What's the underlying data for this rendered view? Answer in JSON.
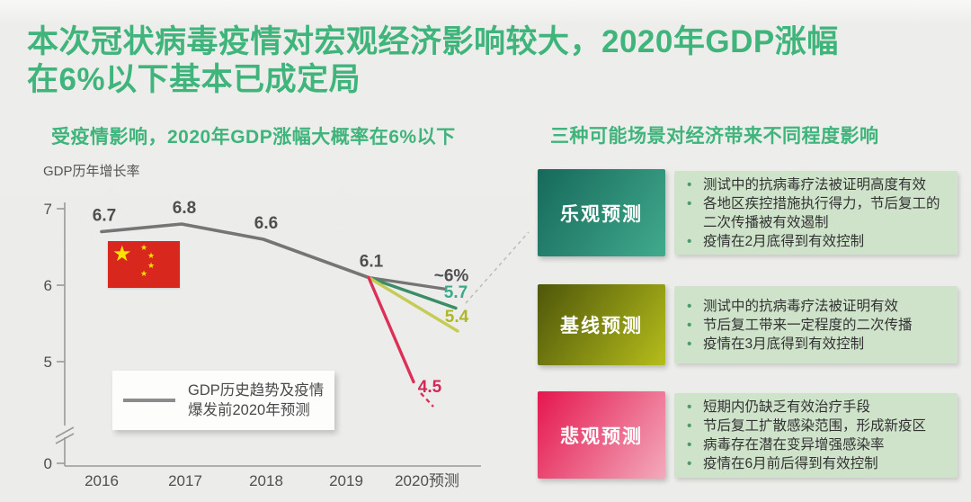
{
  "slide": {
    "title_line1": "本次冠状病毒疫情对宏观经济影响较大，2020年GDP涨幅",
    "title_line2": "在6%以下基本已成定局",
    "left_subtitle": "受疫情影响，2020年GDP涨幅大概率在6%以下",
    "right_subtitle": "三种可能场景对经济带来不同程度影响"
  },
  "colors": {
    "title_green": "#3fb47b",
    "optimistic_box_dark": "#16695a",
    "optimistic_box_light": "#41aa8d",
    "baseline_box_dark": "#4e560a",
    "baseline_box_light": "#b5bd1b",
    "pessimistic_box_dark": "#e5164e",
    "pessimistic_box_light": "#f3aabc",
    "bullet_panel_bg": "#cee3ca",
    "flag_red": "#d8271d",
    "flag_star_yellow": "#fde100",
    "axis_gray": "#9a9a9a",
    "connector_dash_gray": "#bcbcbc"
  },
  "chart_data": {
    "type": "line",
    "title": "GDP历年增长率",
    "x_labels": [
      "2016",
      "2017",
      "2018",
      "2019",
      "2020预测"
    ],
    "y_ticks_upper": [
      7,
      6,
      5
    ],
    "y_tick_bottom": 0,
    "axis_break": true,
    "grid": false,
    "history": {
      "name": "GDP历史趋势及疫情爆发前2020年预测",
      "line_color": "#757575",
      "label_color": "#4f4f4f",
      "years": [
        "2016",
        "2017",
        "2018",
        "2019"
      ],
      "values": [
        6.7,
        6.8,
        6.6,
        6.1
      ],
      "point_labels": [
        "6.7",
        "6.8",
        "6.6",
        "6.1"
      ]
    },
    "forecast_2020": [
      {
        "name": "疫情爆发前2020年预测",
        "value": 5.95,
        "label": "~6%",
        "line_color": "#757575",
        "label_color": "#4f4f4f"
      },
      {
        "name": "乐观预测",
        "value": 5.7,
        "label": "5.7",
        "line_color": "#398e66",
        "label_color": "#3aaa8c"
      },
      {
        "name": "基线预测",
        "value": 5.4,
        "label": "5.4",
        "line_color": "#c5cc55",
        "label_color": "#adb827"
      },
      {
        "name": "悲观预测",
        "value": 4.5,
        "label": "4.5",
        "line_color": "#dc3058",
        "label_color": "#d22858"
      }
    ],
    "legend": {
      "line1": "GDP历史趋势及疫情",
      "line2": "爆发前2020年预测",
      "position": "lower-left"
    }
  },
  "scenarios": [
    {
      "label": "乐观预测",
      "bullets": [
        "测试中的抗病毒疗法被证明高度有效",
        "各地区疾控措施执行得力，节后复工的二次传播被有效遏制",
        "疫情在2月底得到有效控制"
      ]
    },
    {
      "label": "基线预测",
      "bullets": [
        "测试中的抗病毒疗法被证明有效",
        "节后复工带来一定程度的二次传播",
        "疫情在3月底得到有效控制"
      ]
    },
    {
      "label": "悲观预测",
      "bullets": [
        "短期内仍缺乏有效治疗手段",
        "节后复工扩散感染范围，形成新疫区",
        "病毒存在潜在变异增强感染率",
        "疫情在6月前后得到有效控制"
      ]
    }
  ]
}
